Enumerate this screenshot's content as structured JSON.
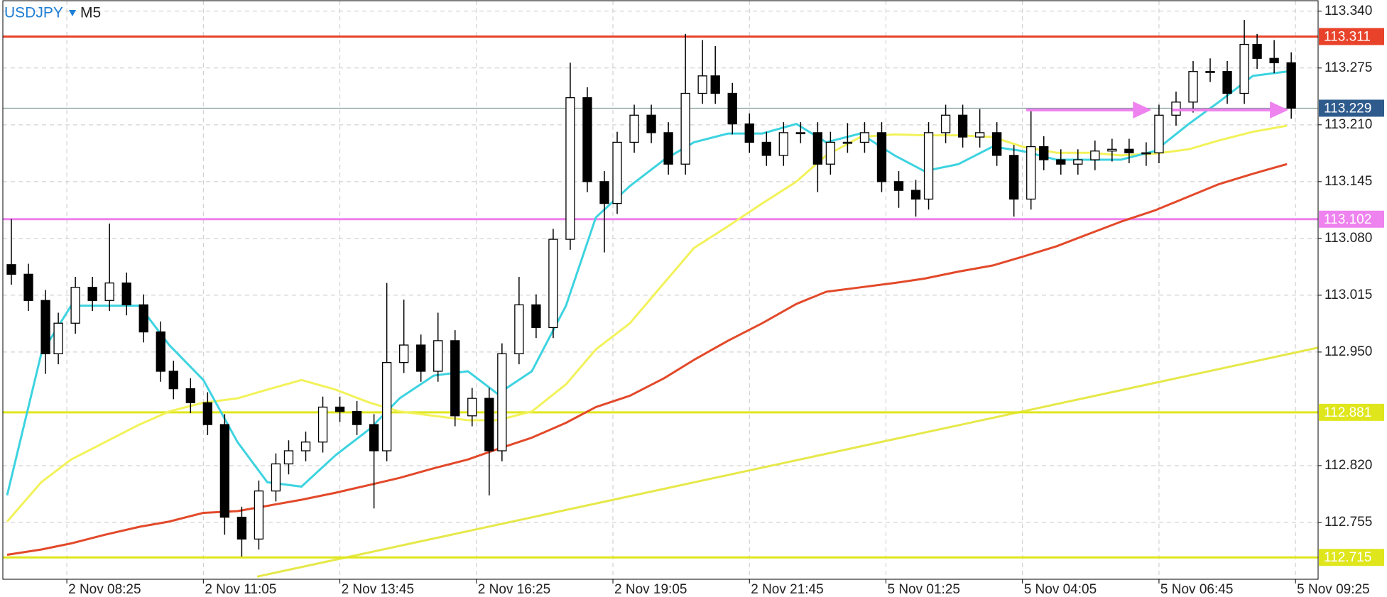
{
  "chart_data": {
    "type": "candlestick",
    "symbol": "USDJPY",
    "timeframe": "M5",
    "up_color": "#ffffff",
    "down_color": "#000000",
    "x": [
      -13,
      -9,
      -5,
      -2,
      2,
      6,
      10,
      14,
      18,
      22,
      25,
      29,
      33,
      37,
      41,
      45,
      49,
      52,
      56,
      60,
      64,
      68,
      72,
      75,
      79,
      83,
      87,
      91,
      95,
      99,
      102,
      106,
      110,
      114,
      118,
      122,
      126,
      129,
      133,
      137,
      141,
      145,
      149,
      152,
      156,
      160,
      164,
      168,
      172,
      176,
      179,
      183,
      187,
      191,
      195,
      199,
      202,
      206,
      210,
      214,
      218,
      222,
      226,
      229,
      233,
      237,
      241,
      245,
      249,
      253,
      256,
      260,
      264,
      268,
      272,
      276,
      279,
      283,
      287
    ],
    "open": [
      113.05,
      113.039,
      113.009,
      112.948,
      112.983,
      113.024,
      113.009,
      113.029,
      113.004,
      112.973,
      112.928,
      112.908,
      112.892,
      112.867,
      112.761,
      112.736,
      112.791,
      112.822,
      112.837,
      112.847,
      112.887,
      112.882,
      112.867,
      112.837,
      112.938,
      112.958,
      112.928,
      112.963,
      112.877,
      112.897,
      112.837,
      112.948,
      113.004,
      112.978,
      113.079,
      113.241,
      113.145,
      113.12,
      113.19,
      113.221,
      113.201,
      113.165,
      113.246,
      113.266,
      113.246,
      113.211,
      113.19,
      113.175,
      113.201,
      113.201,
      113.165,
      113.19,
      113.19,
      113.201,
      113.145,
      113.135,
      113.125,
      113.201,
      113.221,
      113.196,
      113.201,
      113.175,
      113.125,
      113.185,
      113.17,
      113.165,
      113.17,
      113.18,
      113.182,
      113.178,
      113.178,
      113.221,
      113.236,
      113.271,
      113.271,
      113.246,
      113.302,
      113.286,
      113.281
    ],
    "high": [
      113.102,
      113.051,
      113.021,
      112.995,
      113.036,
      113.036,
      113.097,
      113.041,
      113.016,
      112.985,
      112.94,
      112.92,
      112.904,
      112.879,
      112.773,
      112.803,
      112.834,
      112.849,
      112.859,
      112.899,
      112.899,
      112.894,
      112.879,
      113.029,
      113.01,
      112.97,
      112.995,
      112.975,
      112.909,
      112.909,
      112.96,
      113.036,
      113.016,
      113.091,
      113.281,
      113.253,
      113.157,
      113.202,
      113.233,
      113.233,
      113.213,
      113.314,
      113.307,
      113.3,
      113.258,
      113.223,
      113.202,
      113.213,
      113.213,
      113.213,
      113.202,
      113.212,
      113.213,
      113.213,
      113.157,
      113.147,
      113.213,
      113.233,
      113.233,
      113.228,
      113.213,
      113.187,
      113.228,
      113.197,
      113.182,
      113.182,
      113.192,
      113.194,
      113.194,
      113.19,
      113.233,
      113.248,
      113.283,
      113.286,
      113.283,
      113.33,
      113.314,
      113.307,
      113.293
    ],
    "low": [
      113.027,
      112.997,
      112.925,
      112.936,
      112.971,
      112.997,
      112.997,
      112.992,
      112.961,
      112.916,
      112.896,
      112.88,
      112.855,
      112.741,
      112.716,
      112.724,
      112.779,
      112.81,
      112.825,
      112.835,
      112.87,
      112.855,
      112.771,
      112.825,
      112.926,
      112.916,
      112.916,
      112.865,
      112.865,
      112.786,
      112.825,
      112.936,
      112.966,
      112.966,
      113.067,
      113.133,
      113.064,
      113.108,
      113.178,
      113.189,
      113.153,
      113.153,
      113.234,
      113.234,
      113.199,
      113.178,
      113.163,
      113.163,
      113.189,
      113.133,
      113.153,
      113.178,
      113.178,
      113.133,
      113.115,
      113.105,
      113.113,
      113.189,
      113.184,
      113.184,
      113.163,
      113.105,
      113.113,
      113.158,
      113.153,
      113.153,
      113.158,
      113.168,
      113.166,
      113.163,
      113.166,
      113.209,
      113.224,
      113.259,
      113.234,
      113.234,
      113.274,
      113.269,
      113.217
    ],
    "close": [
      113.039,
      113.009,
      112.948,
      112.983,
      113.024,
      113.009,
      113.029,
      113.004,
      112.973,
      112.928,
      112.908,
      112.892,
      112.867,
      112.761,
      112.736,
      112.791,
      112.822,
      112.837,
      112.847,
      112.887,
      112.882,
      112.867,
      112.837,
      112.938,
      112.958,
      112.928,
      112.963,
      112.877,
      112.897,
      112.837,
      112.948,
      113.004,
      112.978,
      113.079,
      113.241,
      113.145,
      113.12,
      113.19,
      113.221,
      113.201,
      113.165,
      113.246,
      113.266,
      113.246,
      113.211,
      113.19,
      113.175,
      113.201,
      113.201,
      113.165,
      113.19,
      113.19,
      113.201,
      113.145,
      113.135,
      113.125,
      113.201,
      113.221,
      113.196,
      113.201,
      113.175,
      113.125,
      113.185,
      113.17,
      113.165,
      113.17,
      113.18,
      113.182,
      113.178,
      113.178,
      113.221,
      113.236,
      113.271,
      113.271,
      113.246,
      113.302,
      113.286,
      113.281,
      113.229
    ],
    "xlim": [
      -15,
      293.3
    ],
    "xticks": [
      {
        "value": 0,
        "label": "2 Nov 08:25"
      },
      {
        "value": 32,
        "label": "2 Nov 11:05"
      },
      {
        "value": 64,
        "label": "2 Nov 13:45"
      },
      {
        "value": 96,
        "label": "2 Nov 16:25"
      },
      {
        "value": 128,
        "label": "2 Nov 19:05"
      },
      {
        "value": 160,
        "label": "2 Nov 21:45"
      },
      {
        "value": 192,
        "label": "5 Nov 01:25"
      },
      {
        "value": 224,
        "label": "5 Nov 04:05"
      },
      {
        "value": 256,
        "label": "5 Nov 06:45"
      },
      {
        "value": 288,
        "label": "5 Nov 09:25"
      }
    ],
    "ylim": [
      112.69,
      113.352
    ],
    "yticks": [
      {
        "value": 113.34,
        "label": "113.340"
      },
      113.275,
      {
        "value": 113.21,
        "label": "113.210"
      },
      113.145,
      {
        "value": 113.08,
        "label": "113.080"
      },
      113.015,
      {
        "value": 112.95,
        "label": "112.950"
      },
      {
        "value": 112.82,
        "label": "112.820"
      },
      112.755
    ],
    "grid": true,
    "lines": {
      "x": [
        -14,
        -6,
        1,
        9,
        17,
        24,
        32,
        40,
        47,
        55,
        63,
        71,
        78,
        86,
        94,
        101,
        109,
        117,
        124,
        132,
        140,
        147,
        155,
        163,
        171,
        178,
        186,
        194,
        201,
        209,
        217,
        224,
        232,
        240,
        247,
        255,
        263,
        270,
        278,
        286
      ],
      "series": [
        {
          "color": "#e2492a",
          "values": [
            112.718,
            112.724,
            112.731,
            112.741,
            112.75,
            112.756,
            112.766,
            112.768,
            112.774,
            112.781,
            112.789,
            112.798,
            112.806,
            112.817,
            112.827,
            112.839,
            112.852,
            112.869,
            112.887,
            112.9,
            112.92,
            112.941,
            112.963,
            112.983,
            113.005,
            113.019,
            113.024,
            113.029,
            113.034,
            113.042,
            113.049,
            113.059,
            113.071,
            113.086,
            113.099,
            113.112,
            113.128,
            113.142,
            113.154,
            113.165
          ]
        },
        {
          "color": "#f2f25a",
          "values": [
            112.756,
            112.801,
            112.827,
            112.847,
            112.867,
            112.882,
            112.892,
            112.897,
            112.907,
            112.918,
            112.907,
            112.892,
            112.882,
            112.877,
            112.872,
            112.872,
            112.882,
            112.913,
            112.953,
            112.983,
            113.029,
            113.069,
            113.094,
            113.12,
            113.145,
            113.175,
            113.196,
            113.199,
            113.198,
            113.198,
            113.196,
            113.185,
            113.178,
            113.178,
            113.175,
            113.177,
            113.182,
            113.192,
            113.202,
            113.209
          ]
        },
        {
          "color": "#3dd3e0",
          "values": [
            112.786,
            112.948,
            113.003,
            113.003,
            113.003,
            112.958,
            112.918,
            112.847,
            112.801,
            112.796,
            112.832,
            112.862,
            112.897,
            112.923,
            112.928,
            112.902,
            112.928,
            113.003,
            113.104,
            113.14,
            113.17,
            113.19,
            113.2,
            113.2,
            113.211,
            113.19,
            113.2,
            113.175,
            113.157,
            113.165,
            113.185,
            113.18,
            113.17,
            113.17,
            113.17,
            113.18,
            113.211,
            113.236,
            113.266,
            113.271
          ]
        }
      ]
    },
    "trendline": {
      "color": "#e6e84a",
      "x": [
        44.6,
        293.3
      ],
      "values": [
        112.693,
        112.955
      ]
    },
    "arrows": {
      "color": "#ee82ee",
      "items": [
        {
          "x": [
            224.9,
            253.9
          ],
          "value": 113.227
        },
        {
          "x": [
            259.1,
            286
          ],
          "value": 113.227
        }
      ]
    },
    "levels": [
      {
        "value": 113.311,
        "color": "#e8432a"
      },
      {
        "value": 113.102,
        "color": "#ee82ee"
      },
      {
        "value": 112.881,
        "color": "#dfe61c"
      },
      {
        "value": 112.715,
        "color": "#dfe61c"
      }
    ],
    "current": {
      "value": 113.229,
      "color": "#2e5b8c",
      "line_color": "#6f8f8c"
    }
  }
}
